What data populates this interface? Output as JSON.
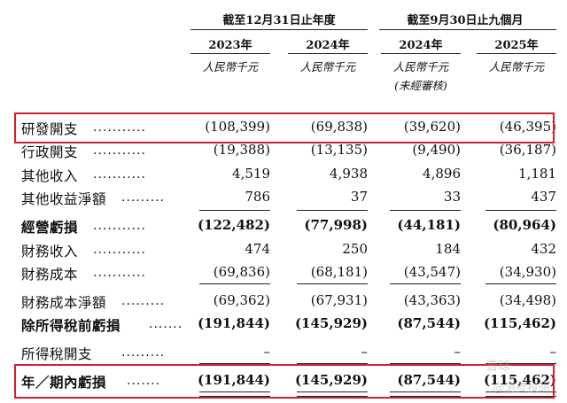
{
  "header": {
    "group1": "截至12月31日止年度",
    "group2": "截至9月30日止九個月",
    "years": [
      "2023年",
      "2024年",
      "2024年",
      "2025年"
    ],
    "units": [
      "人民幣千元",
      "人民幣千元",
      "人民幣千元",
      "人民幣千元"
    ],
    "unaudited": "(未經審核)"
  },
  "rows": [
    {
      "label": "研發開支",
      "values": [
        "(108,399)",
        "(69,838)",
        "(39,620)",
        "(46,395)"
      ]
    },
    {
      "label": "行政開支",
      "values": [
        "(19,388)",
        "(13,135)",
        "(9,490)",
        "(36,187)"
      ]
    },
    {
      "label": "其他收入",
      "values": [
        "4,519",
        "4,938",
        "4,896",
        "1,181"
      ]
    },
    {
      "label": "其他收益淨額",
      "values": [
        "786",
        "37",
        "33",
        "437"
      ]
    },
    {
      "label": "經營虧損",
      "values": [
        "(122,482)",
        "(77,998)",
        "(44,181)",
        "(80,964)"
      ]
    },
    {
      "label": "財務收入",
      "values": [
        "474",
        "250",
        "184",
        "432"
      ]
    },
    {
      "label": "財務成本",
      "values": [
        "(69,836)",
        "(68,181)",
        "(43,547)",
        "(34,930)"
      ]
    },
    {
      "label": "財務成本淨額",
      "values": [
        "(69,362)",
        "(67,931)",
        "(43,363)",
        "(34,498)"
      ]
    },
    {
      "label": "除所得稅前虧損",
      "values": [
        "(191,844)",
        "(145,929)",
        "(87,544)",
        "(115,462)"
      ]
    },
    {
      "label": "所得稅開支",
      "values": [
        "–",
        "–",
        "–",
        "–"
      ]
    },
    {
      "label": "年／期內虧損",
      "values": [
        "(191,844)",
        "(145,929)",
        "(87,544)",
        "(115,462)"
      ]
    }
  ],
  "watermark": {
    "line1": "雪球",
    "line2": "@消费投研"
  }
}
